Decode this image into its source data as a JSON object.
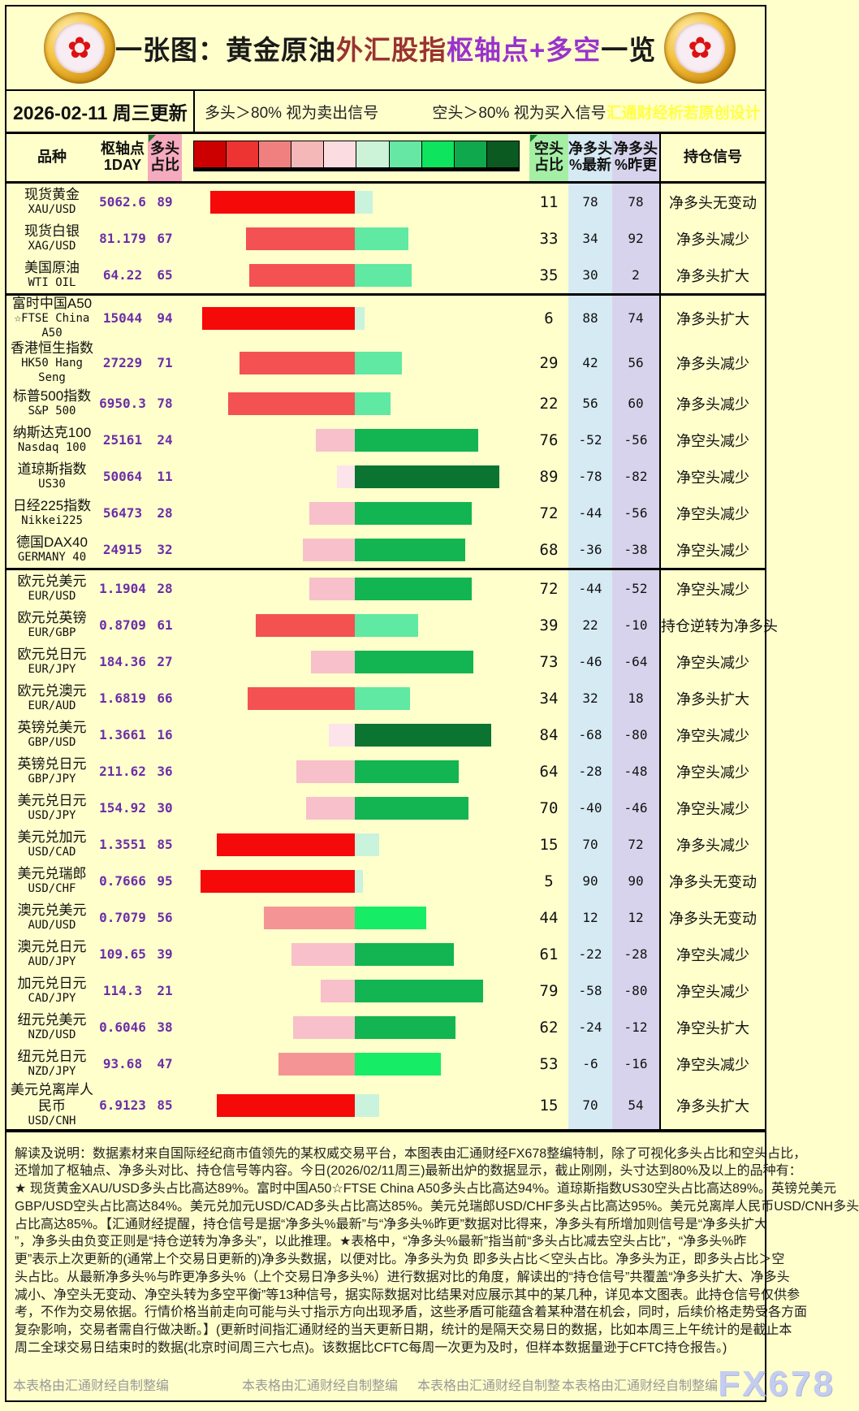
{
  "header": {
    "title_segments": [
      {
        "text": "一张图：黄金原油",
        "color": "#1a1a1a"
      },
      {
        "text": "外汇股指",
        "color": "#993333"
      },
      {
        "text": "枢轴点+多空",
        "color": "#9933cc"
      },
      {
        "text": "一览",
        "color": "#1a1a1a"
      }
    ],
    "logo_icon": "plum-blossom-coin",
    "date_line": "2026-02-11 周三更新",
    "legend_long_note": "多头＞80% 视为卖出信号",
    "legend_short_note": "空头＞80% 视为买入信号",
    "designer_note": "汇通财经析若原创设计"
  },
  "legend": {
    "colors": [
      "#cc0000",
      "#ee3333",
      "#f08080",
      "#f5b8b8",
      "#fbdce0",
      "#ccf2d8",
      "#66e8a4",
      "#0ee45e",
      "#0fa84c",
      "#0a5a22"
    ],
    "long_palette": [
      "#fce4ea",
      "#f8c0ca",
      "#f59494",
      "#f45252",
      "#f60909"
    ],
    "short_palette": [
      "#c9f3dc",
      "#5fe9a2",
      "#16ec66",
      "#12b551",
      "#0a7430"
    ]
  },
  "table": {
    "headers": {
      "symbol": "品种",
      "pivot": [
        "枢轴点",
        "1DAY"
      ],
      "long": [
        "多头",
        "占比"
      ],
      "short": [
        "空头",
        "占比"
      ],
      "net_latest": [
        "净多头",
        "%最新"
      ],
      "net_prev": [
        "净多头",
        "%昨更"
      ],
      "signal": "持仓信号"
    }
  },
  "chart_data": {
    "type": "table",
    "title": "一张图：黄金原油外汇股指枢轴点+多空一览",
    "columns": [
      "品种",
      "枢轴点1DAY",
      "多头占比",
      "空头占比",
      "净多头%最新",
      "净多头%昨更",
      "持仓信号"
    ],
    "bar_layout": {
      "type": "diverging-bar",
      "left_series": "多头占比(红)",
      "right_series": "空头占比(绿)",
      "range_each_side": [
        0,
        100
      ]
    },
    "sections": [
      {
        "rows": [
          {
            "name_lines": [
              "现货黄金",
              "XAU/USD"
            ],
            "pivot": "5062.6",
            "long": 89,
            "short": 11,
            "net_latest": 78,
            "net_prev": 78,
            "signal": "净多头无变动"
          },
          {
            "name_lines": [
              "现货白银",
              "XAG/USD"
            ],
            "pivot": "81.179",
            "long": 67,
            "short": 33,
            "net_latest": 34,
            "net_prev": 92,
            "signal": "净多头减少"
          },
          {
            "name_lines": [
              "美国原油",
              "WTI OIL"
            ],
            "pivot": "64.22",
            "long": 65,
            "short": 35,
            "net_latest": 30,
            "net_prev": 2,
            "signal": "净多头扩大"
          }
        ]
      },
      {
        "rows": [
          {
            "name_lines": [
              "富时中国A50",
              "☆FTSE China",
              "A50"
            ],
            "pivot": "15044",
            "long": 94,
            "short": 6,
            "net_latest": 88,
            "net_prev": 74,
            "signal": "净多头扩大"
          },
          {
            "name_lines": [
              "香港恒生指数",
              "HK50 Hang",
              "Seng"
            ],
            "pivot": "27229",
            "long": 71,
            "short": 29,
            "net_latest": 42,
            "net_prev": 56,
            "signal": "净多头减少"
          },
          {
            "name_lines": [
              "标普500指数",
              "S&P 500"
            ],
            "pivot": "6950.3",
            "long": 78,
            "short": 22,
            "net_latest": 56,
            "net_prev": 60,
            "signal": "净多头减少"
          },
          {
            "name_lines": [
              "纳斯达克100",
              "Nasdaq 100"
            ],
            "pivot": "25161",
            "long": 24,
            "short": 76,
            "net_latest": -52,
            "net_prev": -56,
            "signal": "净空头减少"
          },
          {
            "name_lines": [
              "道琼斯指数",
              "US30"
            ],
            "pivot": "50064",
            "long": 11,
            "short": 89,
            "net_latest": -78,
            "net_prev": -82,
            "signal": "净空头减少"
          },
          {
            "name_lines": [
              "日经225指数",
              "Nikkei225"
            ],
            "pivot": "56473",
            "long": 28,
            "short": 72,
            "net_latest": -44,
            "net_prev": -56,
            "signal": "净空头减少"
          },
          {
            "name_lines": [
              "德国DAX40",
              "GERMANY 40"
            ],
            "pivot": "24915",
            "long": 32,
            "short": 68,
            "net_latest": -36,
            "net_prev": -38,
            "signal": "净空头减少"
          }
        ]
      },
      {
        "rows": [
          {
            "name_lines": [
              "欧元兑美元",
              "EUR/USD"
            ],
            "pivot": "1.1904",
            "long": 28,
            "short": 72,
            "net_latest": -44,
            "net_prev": -52,
            "signal": "净空头减少"
          },
          {
            "name_lines": [
              "欧元兑英镑",
              "EUR/GBP"
            ],
            "pivot": "0.8709",
            "long": 61,
            "short": 39,
            "net_latest": 22,
            "net_prev": -10,
            "signal": "持仓逆转为净多头"
          },
          {
            "name_lines": [
              "欧元兑日元",
              "EUR/JPY"
            ],
            "pivot": "184.36",
            "long": 27,
            "short": 73,
            "net_latest": -46,
            "net_prev": -64,
            "signal": "净空头减少"
          },
          {
            "name_lines": [
              "欧元兑澳元",
              "EUR/AUD"
            ],
            "pivot": "1.6819",
            "long": 66,
            "short": 34,
            "net_latest": 32,
            "net_prev": 18,
            "signal": "净多头扩大"
          },
          {
            "name_lines": [
              "英镑兑美元",
              "GBP/USD"
            ],
            "pivot": "1.3661",
            "long": 16,
            "short": 84,
            "net_latest": -68,
            "net_prev": -80,
            "signal": "净空头减少"
          },
          {
            "name_lines": [
              "英镑兑日元",
              "GBP/JPY"
            ],
            "pivot": "211.62",
            "long": 36,
            "short": 64,
            "net_latest": -28,
            "net_prev": -48,
            "signal": "净空头减少"
          },
          {
            "name_lines": [
              "美元兑日元",
              "USD/JPY"
            ],
            "pivot": "154.92",
            "long": 30,
            "short": 70,
            "net_latest": -40,
            "net_prev": -46,
            "signal": "净空头减少"
          },
          {
            "name_lines": [
              "美元兑加元",
              "USD/CAD"
            ],
            "pivot": "1.3551",
            "long": 85,
            "short": 15,
            "net_latest": 70,
            "net_prev": 72,
            "signal": "净多头减少"
          },
          {
            "name_lines": [
              "美元兑瑞郎",
              "USD/CHF"
            ],
            "pivot": "0.7666",
            "long": 95,
            "short": 5,
            "net_latest": 90,
            "net_prev": 90,
            "signal": "净多头无变动"
          },
          {
            "name_lines": [
              "澳元兑美元",
              "AUD/USD"
            ],
            "pivot": "0.7079",
            "long": 56,
            "short": 44,
            "net_latest": 12,
            "net_prev": 12,
            "signal": "净多头无变动"
          },
          {
            "name_lines": [
              "澳元兑日元",
              "AUD/JPY"
            ],
            "pivot": "109.65",
            "long": 39,
            "short": 61,
            "net_latest": -22,
            "net_prev": -28,
            "signal": "净空头减少"
          },
          {
            "name_lines": [
              "加元兑日元",
              "CAD/JPY"
            ],
            "pivot": "114.3",
            "long": 21,
            "short": 79,
            "net_latest": -58,
            "net_prev": -80,
            "signal": "净空头减少"
          },
          {
            "name_lines": [
              "纽元兑美元",
              "NZD/USD"
            ],
            "pivot": "0.6046",
            "long": 38,
            "short": 62,
            "net_latest": -24,
            "net_prev": -12,
            "signal": "净空头扩大"
          },
          {
            "name_lines": [
              "纽元兑日元",
              "NZD/JPY"
            ],
            "pivot": "93.68",
            "long": 47,
            "short": 53,
            "net_latest": -6,
            "net_prev": -16,
            "signal": "净空头减少"
          },
          {
            "name_lines": [
              "美元兑离岸人",
              "民币",
              "USD/CNH"
            ],
            "pivot": "6.9123",
            "long": 85,
            "short": 15,
            "net_latest": 70,
            "net_prev": 54,
            "signal": "净多头扩大"
          }
        ]
      }
    ]
  },
  "explanation": {
    "lines": [
      "解读及说明：数据素材来自国际经纪商市值领先的某权威交易平台，本图表由汇通财经FX678整编特制，除了可视化多头占比和空头占比，",
      "还增加了枢轴点、净多头对比、持仓信号等内容。今日(2026/02/11周三)最新出炉的数据显示，截止刚刚，头寸达到80%及以上的品种有：",
      "★ 现货黄金XAU/USD多头占比高达89%。富时中国A50☆FTSE China A50多头占比高达94%。道琼斯指数US30空头占比高达89%。英镑兑美元",
      "GBP/USD空头占比高达84%。美元兑加元USD/CAD多头占比高达85%。美元兑瑞郎USD/CHF多头占比高达95%。美元兑离岸人民币USD/CNH多头",
      "占比高达85%。【汇通财经提醒，持仓信号是据“净多头%最新”与“净多头%昨更”数据对比得来，净多头有所增加则信号是“净多头扩大",
      "”，净多头由负变正则是“持仓逆转为净多头”，以此推理。★表格中，“净多头%最新”指当前“多头占比减去空头占比”，“净多头%昨",
      "更”表示上次更新的(通常上个交易日更新的)净多头数据，以便对比。净多头为负 即多头占比＜空头占比。净多头为正，即多头占比＞空",
      "头占比。从最新净多头%与昨更净多头%（上个交易日净多头%）进行数据对比的角度，解读出的“持仓信号”共覆盖“净多头扩大、净多头",
      "减小、净空头无变动、净空头转为多空平衡”等13种信号，据实际数据对比结果对应展示其中的某几种，详见本文图表。此持仓信号仅供参",
      "考，不作为交易依据。行情价格当前走向可能与头寸指示方向出现矛盾，这些矛盾可能蕴含着某种潜在机会，同时，后续价格走势受各方面",
      "复杂影响，交易者需自行做决断。】(更新时间指汇通财经的当天更新日期，统计的是隔天交易日的数据，比如本周三上午统计的是截止本",
      "周二全球交易日结束时的数据(北京时间周三六七点)。该数据比CFTC每周一次更为及时，但样本数据量逊于CFTC持仓报告。)"
    ]
  },
  "footer": {
    "items": [
      "本表格由汇通财经自制整编",
      "本表格由汇通财经自制整编",
      "本表格由汇通财经自制整",
      "本表格由汇通财经自制整编"
    ],
    "brand": "FX678"
  },
  "colors": {
    "page_background": "#ffffcc",
    "long_header_bg": "#f5aabe",
    "short_header_bg": "#a5efa5",
    "net_latest_bg": "#d6eaf4",
    "net_prev_bg": "#d8d3ec",
    "pivot_purple": "#6b2fa8",
    "watermark_yellow": "#ffff42",
    "brand_blue": "#c4cdf0"
  }
}
